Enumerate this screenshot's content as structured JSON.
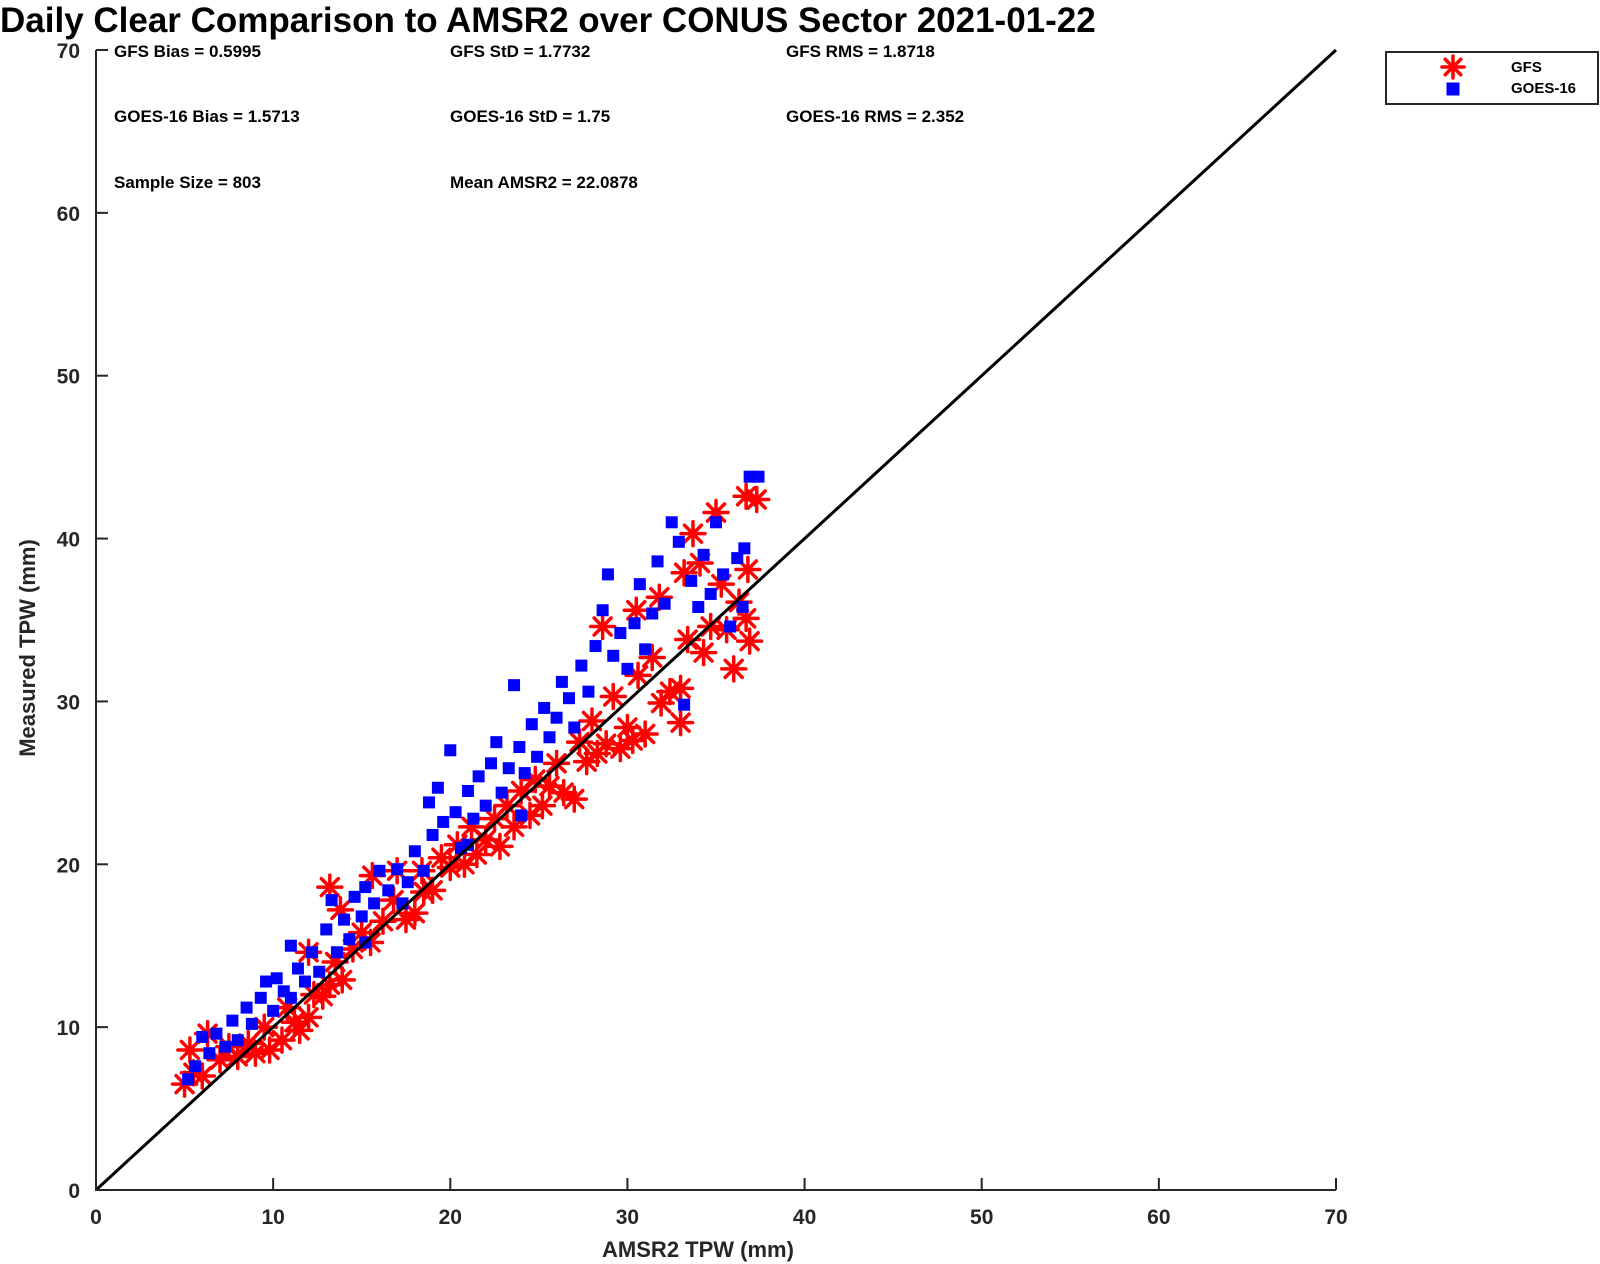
{
  "chart_data": {
    "type": "scatter",
    "title": "Daily Clear Comparison to AMSR2 over CONUS Sector 2021-01-22",
    "xlabel": "AMSR2 TPW (mm)",
    "ylabel": "Measured TPW (mm)",
    "xlim": [
      0,
      70
    ],
    "ylim": [
      0,
      70
    ],
    "xticks": [
      0,
      10,
      20,
      30,
      40,
      50,
      60,
      70
    ],
    "yticks": [
      0,
      10,
      20,
      30,
      40,
      50,
      60,
      70
    ],
    "grid": false,
    "legend_position": "top-right, outside plot",
    "reference_line": {
      "x": [
        0,
        70
      ],
      "y": [
        0,
        70
      ],
      "color": "#000000"
    },
    "stats": [
      [
        "GFS Bias = 0.5995",
        "GFS StD = 1.7732",
        "GFS RMS = 1.8718"
      ],
      [
        "GOES-16 Bias = 1.5713",
        "GOES-16 StD = 1.75",
        "GOES-16 RMS = 2.352"
      ],
      [
        "Sample Size = 803",
        "Mean AMSR2 = 22.0878",
        ""
      ]
    ],
    "series": [
      {
        "name": "GFS",
        "color": "#ff0000",
        "marker": "asterisk",
        "points": [
          [
            5.0,
            6.5
          ],
          [
            5.5,
            7.2
          ],
          [
            5.3,
            8.6
          ],
          [
            6.0,
            7.0
          ],
          [
            6.3,
            9.6
          ],
          [
            7.0,
            8.0
          ],
          [
            7.5,
            8.8
          ],
          [
            8.0,
            8.2
          ],
          [
            8.6,
            9.0
          ],
          [
            9.0,
            8.4
          ],
          [
            9.5,
            10.0
          ],
          [
            9.8,
            8.6
          ],
          [
            10.5,
            9.2
          ],
          [
            10.8,
            11.2
          ],
          [
            11.2,
            10.3
          ],
          [
            11.5,
            9.8
          ],
          [
            12.0,
            10.6
          ],
          [
            12.3,
            12.0
          ],
          [
            12.0,
            14.6
          ],
          [
            12.8,
            11.9
          ],
          [
            13.2,
            12.6
          ],
          [
            13.5,
            14.0
          ],
          [
            13.9,
            12.9
          ],
          [
            13.2,
            18.6
          ],
          [
            13.8,
            17.2
          ],
          [
            14.5,
            14.8
          ],
          [
            15.0,
            15.8
          ],
          [
            15.5,
            15.2
          ],
          [
            15.6,
            19.3
          ],
          [
            16.2,
            16.5
          ],
          [
            16.8,
            17.8
          ],
          [
            17.0,
            19.6
          ],
          [
            17.5,
            16.6
          ],
          [
            18.0,
            17.0
          ],
          [
            18.5,
            18.3
          ],
          [
            18.4,
            19.6
          ],
          [
            19.0,
            18.4
          ],
          [
            19.5,
            20.4
          ],
          [
            20.0,
            19.8
          ],
          [
            20.4,
            21.2
          ],
          [
            20.8,
            20.0
          ],
          [
            21.2,
            22.3
          ],
          [
            21.5,
            20.6
          ],
          [
            22.0,
            21.5
          ],
          [
            22.5,
            22.8
          ],
          [
            22.8,
            21.1
          ],
          [
            23.2,
            23.6
          ],
          [
            23.6,
            22.3
          ],
          [
            24.0,
            24.5
          ],
          [
            24.5,
            23.0
          ],
          [
            24.8,
            25.2
          ],
          [
            25.2,
            23.6
          ],
          [
            25.6,
            24.8
          ],
          [
            26.0,
            26.2
          ],
          [
            26.4,
            24.4
          ],
          [
            27.0,
            24.0
          ],
          [
            27.3,
            27.5
          ],
          [
            27.7,
            26.3
          ],
          [
            28.0,
            28.8
          ],
          [
            28.3,
            26.8
          ],
          [
            28.6,
            34.6
          ],
          [
            28.8,
            27.4
          ],
          [
            29.2,
            30.3
          ],
          [
            29.6,
            27.1
          ],
          [
            30.0,
            28.4
          ],
          [
            30.3,
            27.6
          ],
          [
            30.6,
            31.6
          ],
          [
            31.0,
            28.0
          ],
          [
            30.5,
            35.6
          ],
          [
            31.4,
            32.7
          ],
          [
            31.9,
            29.9
          ],
          [
            32.4,
            30.6
          ],
          [
            33.0,
            28.7
          ],
          [
            33.0,
            30.8
          ],
          [
            33.4,
            33.8
          ],
          [
            33.7,
            40.3
          ],
          [
            34.1,
            38.5
          ],
          [
            34.3,
            33.0
          ],
          [
            34.7,
            34.6
          ],
          [
            35.0,
            41.6
          ],
          [
            35.3,
            37.2
          ],
          [
            35.6,
            34.4
          ],
          [
            36.0,
            32.0
          ],
          [
            36.3,
            36.1
          ],
          [
            36.8,
            38.1
          ],
          [
            36.9,
            33.7
          ],
          [
            36.7,
            42.6
          ],
          [
            37.3,
            42.4
          ],
          [
            36.7,
            35.1
          ],
          [
            33.2,
            37.9
          ],
          [
            31.8,
            36.4
          ]
        ]
      },
      {
        "name": "GOES-16",
        "color": "#0000ff",
        "marker": "square",
        "points": [
          [
            5.2,
            6.8
          ],
          [
            5.6,
            7.6
          ],
          [
            6.0,
            9.4
          ],
          [
            6.4,
            8.4
          ],
          [
            6.8,
            9.6
          ],
          [
            7.3,
            8.8
          ],
          [
            7.7,
            10.4
          ],
          [
            8.0,
            9.2
          ],
          [
            8.5,
            11.2
          ],
          [
            8.8,
            10.2
          ],
          [
            9.3,
            11.8
          ],
          [
            9.6,
            12.8
          ],
          [
            10.0,
            11.0
          ],
          [
            10.2,
            13.0
          ],
          [
            10.6,
            12.2
          ],
          [
            11.0,
            15.0
          ],
          [
            11.4,
            13.6
          ],
          [
            11.8,
            12.8
          ],
          [
            12.2,
            14.6
          ],
          [
            12.6,
            13.4
          ],
          [
            13.0,
            16.0
          ],
          [
            13.3,
            17.8
          ],
          [
            13.6,
            14.6
          ],
          [
            14.0,
            16.6
          ],
          [
            14.3,
            15.4
          ],
          [
            14.6,
            18.0
          ],
          [
            15.0,
            16.8
          ],
          [
            15.2,
            18.6
          ],
          [
            15.7,
            17.6
          ],
          [
            16.0,
            19.6
          ],
          [
            16.5,
            18.4
          ],
          [
            17.0,
            19.7
          ],
          [
            17.3,
            17.6
          ],
          [
            17.6,
            18.9
          ],
          [
            18.0,
            20.8
          ],
          [
            18.5,
            19.6
          ],
          [
            18.8,
            23.8
          ],
          [
            19.0,
            21.8
          ],
          [
            19.3,
            24.7
          ],
          [
            19.6,
            22.6
          ],
          [
            20.0,
            27.0
          ],
          [
            20.3,
            23.2
          ],
          [
            20.6,
            21.0
          ],
          [
            21.0,
            24.5
          ],
          [
            21.3,
            22.8
          ],
          [
            21.6,
            25.4
          ],
          [
            22.0,
            23.6
          ],
          [
            22.3,
            26.2
          ],
          [
            22.6,
            27.5
          ],
          [
            22.9,
            24.4
          ],
          [
            23.3,
            25.9
          ],
          [
            23.6,
            31.0
          ],
          [
            23.9,
            27.2
          ],
          [
            24.2,
            25.6
          ],
          [
            24.6,
            28.6
          ],
          [
            24.9,
            26.6
          ],
          [
            25.3,
            29.6
          ],
          [
            25.6,
            27.8
          ],
          [
            26.0,
            29.0
          ],
          [
            26.3,
            31.2
          ],
          [
            26.7,
            30.2
          ],
          [
            27.0,
            28.4
          ],
          [
            27.4,
            32.2
          ],
          [
            27.8,
            30.6
          ],
          [
            28.2,
            33.4
          ],
          [
            28.6,
            35.6
          ],
          [
            28.9,
            37.8
          ],
          [
            29.2,
            32.8
          ],
          [
            29.6,
            34.2
          ],
          [
            30.0,
            32.0
          ],
          [
            30.4,
            34.8
          ],
          [
            30.7,
            37.2
          ],
          [
            31.0,
            33.2
          ],
          [
            31.4,
            35.4
          ],
          [
            31.7,
            38.6
          ],
          [
            32.1,
            36.0
          ],
          [
            32.5,
            41.0
          ],
          [
            32.9,
            39.8
          ],
          [
            33.2,
            29.8
          ],
          [
            33.6,
            37.4
          ],
          [
            34.0,
            35.8
          ],
          [
            34.3,
            39.0
          ],
          [
            34.7,
            36.6
          ],
          [
            35.0,
            41.0
          ],
          [
            35.4,
            37.8
          ],
          [
            35.8,
            34.6
          ],
          [
            36.2,
            38.8
          ],
          [
            36.6,
            39.4
          ],
          [
            36.9,
            43.8
          ],
          [
            37.4,
            43.8
          ],
          [
            36.5,
            35.8
          ],
          [
            24.0,
            23.0
          ],
          [
            21.0,
            21.2
          ],
          [
            15.2,
            15.2
          ],
          [
            11.0,
            11.8
          ]
        ]
      }
    ]
  }
}
